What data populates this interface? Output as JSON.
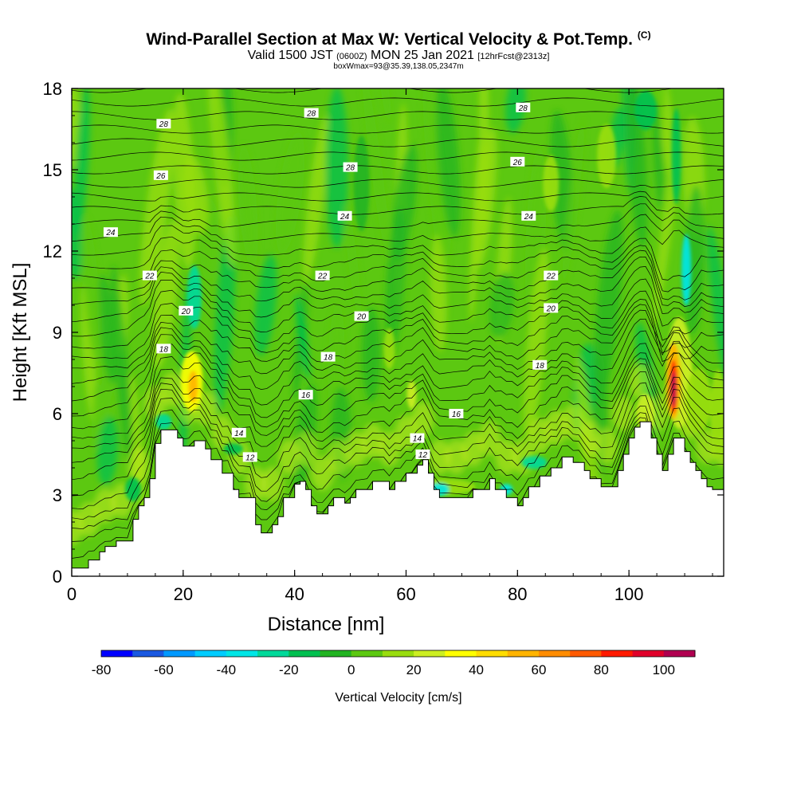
{
  "title": {
    "main": "Wind-Parallel Section at Max W: Vertical Velocity & Pot.Temp.",
    "copyright": "(C)",
    "valid_a": "Valid 1500 JST",
    "valid_zulu": "(0600Z)",
    "valid_b": "MON 25 Jan 2021",
    "forecast": "[12hrFcst@2313z]",
    "box_info": "boxWmax=93@35.39,138.05,2347m"
  },
  "chart_data": {
    "type": "heatmap",
    "xlabel": "Distance [nm]",
    "ylabel": "Height [Kft MSL]",
    "xlim": [
      0,
      117
    ],
    "ylim": [
      0,
      18
    ],
    "x_ticks": [
      0,
      20,
      40,
      60,
      80,
      100
    ],
    "y_ticks": [
      0,
      3,
      6,
      9,
      12,
      15,
      18
    ],
    "colorbar": {
      "title": "Vertical Velocity [cm/s]",
      "tick_labels": [
        -80,
        -60,
        -40,
        -20,
        0,
        20,
        40,
        60,
        80,
        100
      ],
      "bounds": [
        -80,
        110
      ],
      "step": 10,
      "colors": [
        "#0000ff",
        "#1a58e0",
        "#0099ff",
        "#00ccff",
        "#00e6e6",
        "#00d99a",
        "#00c050",
        "#22b422",
        "#5cc811",
        "#99dd0e",
        "#ccee22",
        "#ffff00",
        "#ffdd00",
        "#ffb400",
        "#ff8c00",
        "#ff5a00",
        "#ff1a00",
        "#e0002a",
        "#b00050"
      ]
    },
    "theta_contour_labels": [
      {
        "x": 16.5,
        "y": 16.7,
        "text": "28"
      },
      {
        "x": 43,
        "y": 17.1,
        "text": "28"
      },
      {
        "x": 81,
        "y": 17.3,
        "text": "28"
      },
      {
        "x": 50,
        "y": 15.1,
        "text": "28"
      },
      {
        "x": 16,
        "y": 14.8,
        "text": "26"
      },
      {
        "x": 80,
        "y": 15.3,
        "text": "26"
      },
      {
        "x": 7,
        "y": 12.7,
        "text": "24"
      },
      {
        "x": 49,
        "y": 13.3,
        "text": "24"
      },
      {
        "x": 82,
        "y": 13.3,
        "text": "24"
      },
      {
        "x": 14,
        "y": 11.1,
        "text": "22"
      },
      {
        "x": 45,
        "y": 11.1,
        "text": "22"
      },
      {
        "x": 86,
        "y": 11.1,
        "text": "22"
      },
      {
        "x": 20.5,
        "y": 9.8,
        "text": "20"
      },
      {
        "x": 52,
        "y": 9.6,
        "text": "20"
      },
      {
        "x": 86,
        "y": 9.9,
        "text": "20"
      },
      {
        "x": 16.5,
        "y": 8.4,
        "text": "18"
      },
      {
        "x": 46,
        "y": 8.1,
        "text": "18"
      },
      {
        "x": 84,
        "y": 7.8,
        "text": "18"
      },
      {
        "x": 42,
        "y": 6.7,
        "text": "16"
      },
      {
        "x": 69,
        "y": 6.0,
        "text": "16"
      },
      {
        "x": 30,
        "y": 5.3,
        "text": "14"
      },
      {
        "x": 62,
        "y": 5.1,
        "text": "14"
      },
      {
        "x": 32,
        "y": 4.4,
        "text": "12"
      },
      {
        "x": 63,
        "y": 4.5,
        "text": "12"
      }
    ],
    "vertical_velocity_max_cm_s": 93,
    "strong_updraft": {
      "x_nm": 108,
      "height_kft": [
        5,
        9
      ],
      "max_cm_s": 93
    },
    "terrain_height_kft": [
      [
        0,
        0.3
      ],
      [
        3,
        0.3
      ],
      [
        3,
        0.6
      ],
      [
        5,
        0.6
      ],
      [
        5,
        0.9
      ],
      [
        6,
        0.9
      ],
      [
        6,
        1.1
      ],
      [
        8,
        1.1
      ],
      [
        8,
        1.3
      ],
      [
        11,
        1.3
      ],
      [
        11,
        2.1
      ],
      [
        12,
        2.1
      ],
      [
        12,
        2.6
      ],
      [
        13,
        2.6
      ],
      [
        13,
        2.9
      ],
      [
        14,
        2.9
      ],
      [
        14,
        3.6
      ],
      [
        15,
        3.6
      ],
      [
        15,
        4.9
      ],
      [
        16,
        4.9
      ],
      [
        16,
        5.4
      ],
      [
        19,
        5.4
      ],
      [
        19,
        5.1
      ],
      [
        20,
        5.1
      ],
      [
        20,
        4.8
      ],
      [
        22,
        4.8
      ],
      [
        22,
        5.0
      ],
      [
        24,
        5.0
      ],
      [
        24,
        4.7
      ],
      [
        25,
        4.7
      ],
      [
        25,
        4.3
      ],
      [
        27,
        4.3
      ],
      [
        27,
        3.8
      ],
      [
        29,
        3.8
      ],
      [
        29,
        3.2
      ],
      [
        30,
        3.2
      ],
      [
        30,
        2.9
      ],
      [
        33,
        2.9
      ],
      [
        33,
        1.9
      ],
      [
        34,
        1.9
      ],
      [
        34,
        1.6
      ],
      [
        36,
        1.6
      ],
      [
        36,
        1.9
      ],
      [
        37,
        1.9
      ],
      [
        37,
        2.2
      ],
      [
        38,
        2.2
      ],
      [
        38,
        2.9
      ],
      [
        40,
        2.9
      ],
      [
        40,
        3.4
      ],
      [
        41,
        3.4
      ],
      [
        41,
        3.5
      ],
      [
        42,
        3.5
      ],
      [
        42,
        3.2
      ],
      [
        43,
        3.2
      ],
      [
        43,
        2.6
      ],
      [
        44,
        2.6
      ],
      [
        44,
        2.3
      ],
      [
        46,
        2.3
      ],
      [
        46,
        2.6
      ],
      [
        47,
        2.6
      ],
      [
        47,
        2.9
      ],
      [
        49,
        2.9
      ],
      [
        49,
        2.7
      ],
      [
        50,
        2.7
      ],
      [
        50,
        2.9
      ],
      [
        51,
        2.9
      ],
      [
        51,
        3.2
      ],
      [
        54,
        3.2
      ],
      [
        54,
        3.5
      ],
      [
        57,
        3.5
      ],
      [
        57,
        3.2
      ],
      [
        58,
        3.2
      ],
      [
        58,
        3.5
      ],
      [
        60,
        3.5
      ],
      [
        60,
        3.8
      ],
      [
        62,
        3.8
      ],
      [
        62,
        4.1
      ],
      [
        63,
        4.1
      ],
      [
        63,
        4.3
      ],
      [
        64,
        4.3
      ],
      [
        64,
        3.8
      ],
      [
        65,
        3.8
      ],
      [
        65,
        3.2
      ],
      [
        66,
        3.2
      ],
      [
        66,
        2.9
      ],
      [
        72,
        2.9
      ],
      [
        72,
        3.2
      ],
      [
        75,
        3.2
      ],
      [
        75,
        3.6
      ],
      [
        76,
        3.6
      ],
      [
        76,
        3.2
      ],
      [
        78,
        3.2
      ],
      [
        78,
        2.9
      ],
      [
        80,
        2.9
      ],
      [
        80,
        2.6
      ],
      [
        81,
        2.6
      ],
      [
        81,
        2.9
      ],
      [
        82,
        2.9
      ],
      [
        82,
        3.3
      ],
      [
        84,
        3.3
      ],
      [
        84,
        3.7
      ],
      [
        86,
        3.7
      ],
      [
        86,
        4.0
      ],
      [
        88,
        4.0
      ],
      [
        88,
        4.4
      ],
      [
        90,
        4.4
      ],
      [
        90,
        4.2
      ],
      [
        92,
        4.2
      ],
      [
        92,
        3.9
      ],
      [
        93,
        3.9
      ],
      [
        93,
        3.6
      ],
      [
        95,
        3.6
      ],
      [
        95,
        3.3
      ],
      [
        98,
        3.3
      ],
      [
        98,
        3.9
      ],
      [
        99,
        3.9
      ],
      [
        99,
        4.5
      ],
      [
        100,
        4.5
      ],
      [
        100,
        5.1
      ],
      [
        101,
        5.1
      ],
      [
        101,
        5.5
      ],
      [
        102,
        5.5
      ],
      [
        102,
        5.7
      ],
      [
        104,
        5.7
      ],
      [
        104,
        5.1
      ],
      [
        105,
        5.1
      ],
      [
        105,
        4.5
      ],
      [
        106,
        4.5
      ],
      [
        106,
        3.9
      ],
      [
        107,
        3.9
      ],
      [
        107,
        4.5
      ],
      [
        108,
        4.5
      ],
      [
        108,
        5.1
      ],
      [
        110,
        5.1
      ],
      [
        110,
        4.6
      ],
      [
        111,
        4.6
      ],
      [
        111,
        4.2
      ],
      [
        112,
        4.2
      ],
      [
        112,
        3.9
      ],
      [
        113,
        3.9
      ],
      [
        113,
        3.6
      ],
      [
        114,
        3.6
      ],
      [
        114,
        3.3
      ],
      [
        115,
        3.3
      ],
      [
        115,
        3.2
      ],
      [
        117,
        3.2
      ],
      [
        117,
        0
      ],
      [
        0,
        0
      ]
    ]
  }
}
